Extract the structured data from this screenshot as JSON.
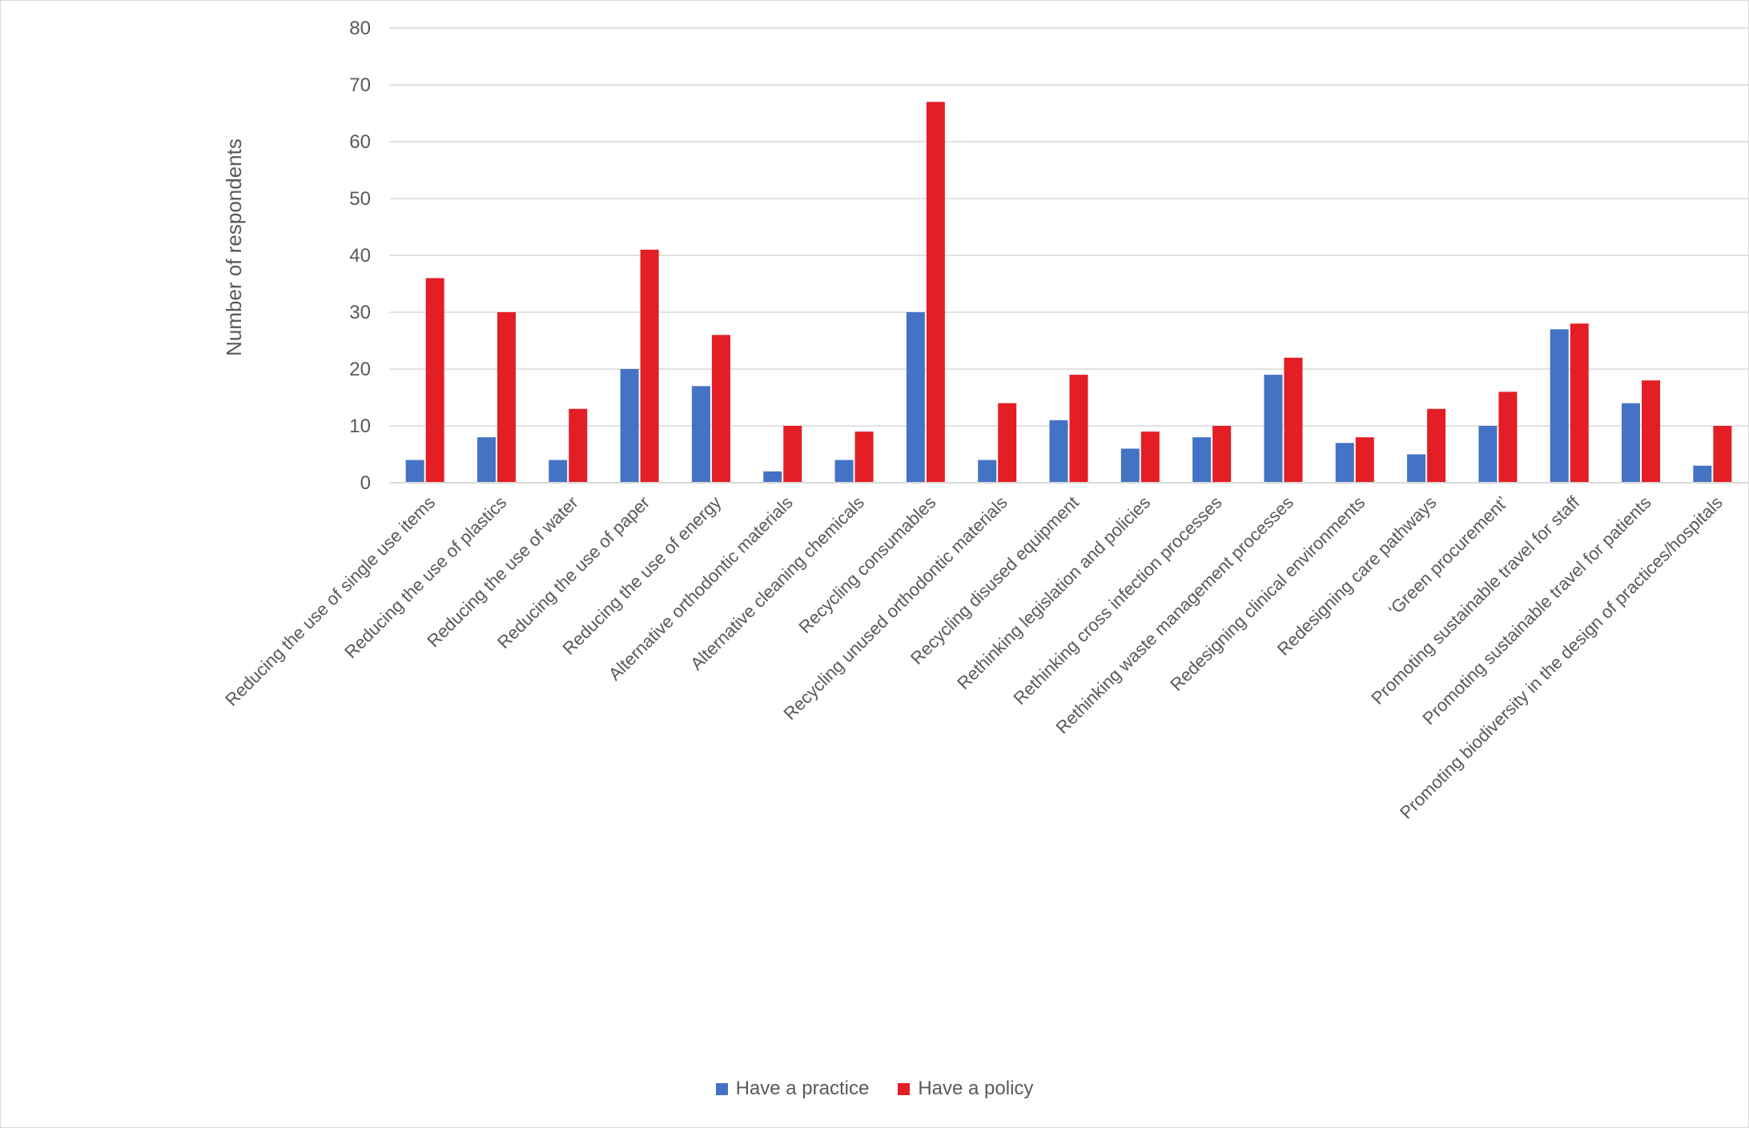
{
  "chart_data": {
    "type": "bar",
    "title": "",
    "xlabel": "",
    "ylabel": "Number of respondents",
    "ylim": [
      0,
      80
    ],
    "yticks": [
      0,
      10,
      20,
      30,
      40,
      50,
      60,
      70,
      80
    ],
    "grid": true,
    "legend_position": "bottom",
    "categories": [
      "Reducing the use of single use items",
      "Reducing the use of plastics",
      "Reducing the use of water",
      "Reducing the use of paper",
      "Reducing the use of energy",
      "Alternative orthodontic materials",
      "Alternative cleaning chemicals",
      "Recycling consumables",
      "Recycling unused orthodontic materials",
      "Recycling disused equipment",
      "Rethinking legislation and policies",
      "Rethinking cross infection processes",
      "Rethinking waste management processes",
      "Redesigning clinical environments",
      "Redesigning care pathways",
      "‘Green procurement’",
      "Promoting sustainable travel for staff",
      "Promoting sustainable travel for patients",
      "Promoting biodiversity in the design of practices/hospitals"
    ],
    "series": [
      {
        "name": "Have a practice",
        "color": "#4472C4",
        "values": [
          4,
          8,
          4,
          20,
          17,
          2,
          4,
          30,
          4,
          11,
          6,
          8,
          19,
          7,
          5,
          10,
          27,
          14,
          3
        ]
      },
      {
        "name": "Have a policy",
        "color": "#E31E24",
        "values": [
          36,
          30,
          13,
          41,
          26,
          10,
          9,
          67,
          14,
          19,
          9,
          10,
          22,
          8,
          13,
          16,
          28,
          18,
          10
        ]
      }
    ]
  }
}
